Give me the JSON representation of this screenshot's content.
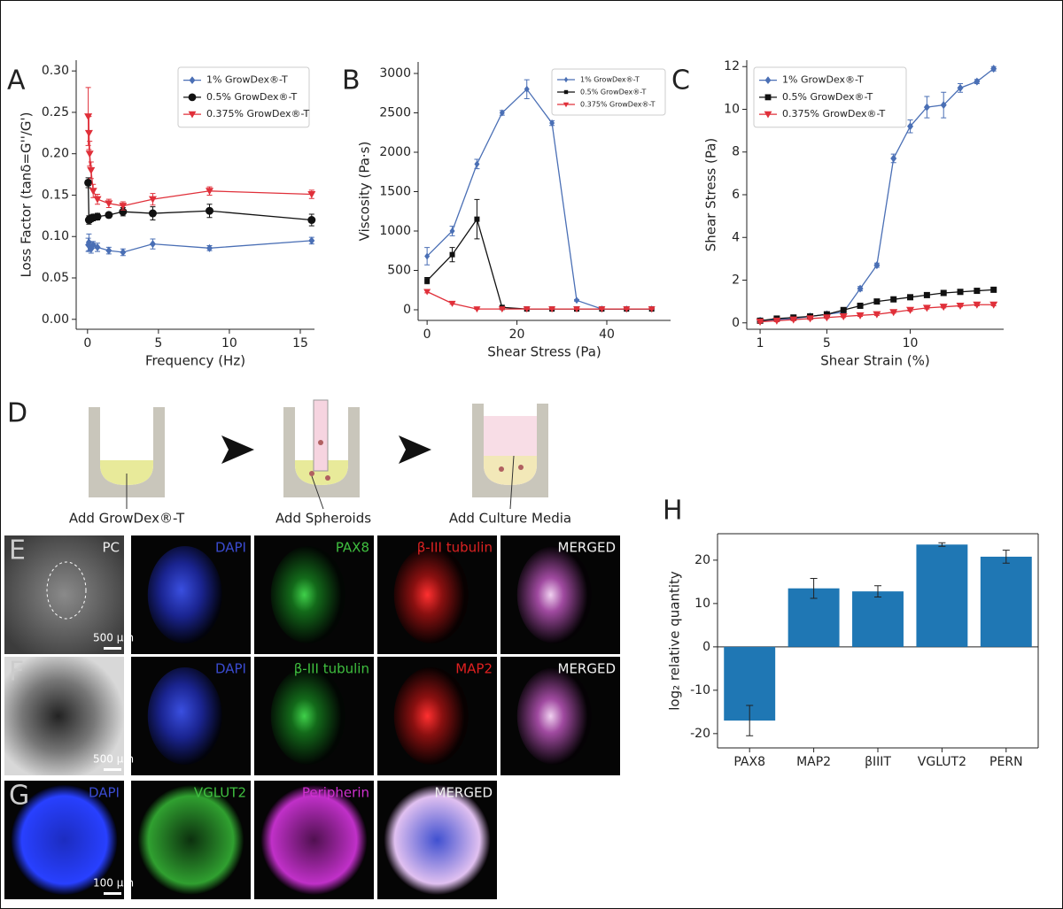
{
  "chart_data": [
    {
      "type": "line",
      "panel_label": "A",
      "xlabel": "Frequency (Hz)",
      "ylabel": "Loss Factor (tanδ=G''/G')",
      "xlim": [
        -0.8,
        16.0
      ],
      "ylim": [
        -0.012,
        0.313
      ],
      "xticks": [
        0,
        5,
        10,
        15
      ],
      "yticks": [
        {
          "value": 0,
          "label": "0.00"
        },
        0.05,
        {
          "value": 0.1,
          "label": "0.10"
        },
        0.15,
        {
          "value": 0.2,
          "label": "0.20"
        },
        0.25,
        {
          "value": 0.3,
          "label": "0.30"
        }
      ],
      "legend": "upper right",
      "x": [
        0.05,
        0.1,
        0.15,
        0.25,
        0.4,
        0.7,
        1.5,
        2.5,
        4.6,
        8.6,
        15.8
      ],
      "series": [
        {
          "name": "1% GrowDex®-T",
          "color": "#4a6fb5",
          "marker": "diamond",
          "values": [
            0.09,
            0.093,
            0.088,
            0.085,
            0.09,
            0.087,
            0.083,
            0.081,
            0.091,
            0.086,
            0.095
          ],
          "errors": [
            0.008,
            0.01,
            0.006,
            0.005,
            0.004,
            0.005,
            0.004,
            0.004,
            0.006,
            0.003,
            0.004
          ]
        },
        {
          "name": "0.5% GrowDex®-T",
          "color": "#111111",
          "marker": "circle",
          "values": [
            0.165,
            0.12,
            0.121,
            0.122,
            0.123,
            0.124,
            0.126,
            0.13,
            0.128,
            0.131,
            0.12
          ],
          "errors": [
            0.006,
            0.005,
            0.004,
            0.004,
            0.004,
            0.004,
            0.003,
            0.005,
            0.008,
            0.008,
            0.007
          ]
        },
        {
          "name": "0.375% GrowDex®-T",
          "color": "#e0303a",
          "marker": "triangle",
          "values": [
            0.245,
            0.225,
            0.2,
            0.18,
            0.155,
            0.145,
            0.14,
            0.137,
            0.145,
            0.155,
            0.151
          ],
          "errors": [
            0.035,
            0.02,
            0.015,
            0.01,
            0.008,
            0.006,
            0.005,
            0.005,
            0.007,
            0.005,
            0.005
          ]
        }
      ]
    },
    {
      "type": "line",
      "panel_label": "B",
      "xlabel": "Shear Stress (Pa)",
      "ylabel": "Viscosity (Pa·s)",
      "xlim": [
        -2,
        54.2
      ],
      "ylim": [
        -135,
        3146
      ],
      "xticks": [
        0,
        20,
        40
      ],
      "yticks": [
        0,
        500,
        1000,
        1500,
        2000,
        2500,
        3000
      ],
      "legend": "upper right",
      "x": [
        0,
        5.6,
        11.1,
        16.7,
        22.2,
        27.8,
        33.3,
        38.9,
        44.4,
        50
      ],
      "series": [
        {
          "name": "1% GrowDex®-T",
          "color": "#4a6fb5",
          "marker": "diamond",
          "values": [
            680,
            1000,
            1850,
            2500,
            2800,
            2370,
            120,
            10,
            10,
            10
          ],
          "errors": [
            110,
            60,
            60,
            30,
            120,
            30,
            10,
            5,
            5,
            5
          ]
        },
        {
          "name": "0.5% GrowDex®-T",
          "color": "#111111",
          "marker": "square",
          "values": [
            370,
            700,
            1150,
            30,
            10,
            10,
            10,
            10,
            10,
            10
          ],
          "errors": [
            40,
            90,
            250,
            10,
            5,
            5,
            5,
            5,
            5,
            5
          ]
        },
        {
          "name": "0.375% GrowDex®-T",
          "color": "#e0303a",
          "marker": "triangle",
          "values": [
            230,
            80,
            10,
            10,
            10,
            10,
            10,
            10,
            10,
            10
          ],
          "errors": [
            15,
            10,
            5,
            5,
            5,
            5,
            5,
            5,
            5,
            5
          ]
        }
      ]
    },
    {
      "type": "line",
      "panel_label": "C",
      "xlabel": "Shear Strain (%)",
      "ylabel": "Shear Stress (Pa)",
      "xlim": [
        0.2,
        15.6
      ],
      "ylim": [
        -0.3,
        12.3
      ],
      "xticks": [
        1,
        5,
        10
      ],
      "yticks": [
        0,
        2,
        4,
        6,
        8,
        10,
        12
      ],
      "legend": "upper left",
      "x": [
        1,
        2,
        3,
        4,
        5,
        6,
        7,
        8,
        9,
        10,
        11,
        12,
        13,
        14,
        15
      ],
      "series": [
        {
          "name": "1% GrowDex®-T",
          "color": "#4a6fb5",
          "marker": "diamond",
          "values": [
            0.1,
            0.15,
            0.2,
            0.3,
            0.4,
            0.5,
            1.6,
            2.7,
            7.7,
            9.2,
            10.1,
            10.2,
            11,
            11.3,
            11.9
          ],
          "errors": [
            0.05,
            0.05,
            0.05,
            0.05,
            0.05,
            0.05,
            0.1,
            0.1,
            0.2,
            0.3,
            0.5,
            0.6,
            0.2,
            0.1,
            0.1
          ]
        },
        {
          "name": "0.5% GrowDex®-T",
          "color": "#111111",
          "marker": "square",
          "values": [
            0.1,
            0.2,
            0.25,
            0.3,
            0.4,
            0.6,
            0.8,
            1.0,
            1.1,
            1.2,
            1.3,
            1.4,
            1.45,
            1.5,
            1.55
          ],
          "errors": [
            0.05,
            0.05,
            0.05,
            0.05,
            0.05,
            0.05,
            0.05,
            0.05,
            0.05,
            0.05,
            0.05,
            0.05,
            0.05,
            0.05,
            0.05
          ]
        },
        {
          "name": "0.375% GrowDex®-T",
          "color": "#e0303a",
          "marker": "triangle",
          "values": [
            0.05,
            0.1,
            0.15,
            0.2,
            0.25,
            0.3,
            0.35,
            0.4,
            0.5,
            0.6,
            0.7,
            0.75,
            0.8,
            0.85,
            0.85
          ],
          "errors": [
            0.05,
            0.05,
            0.05,
            0.05,
            0.05,
            0.05,
            0.05,
            0.05,
            0.05,
            0.05,
            0.05,
            0.05,
            0.05,
            0.05,
            0.05
          ]
        }
      ]
    },
    {
      "type": "bar",
      "panel_label": "H",
      "ylabel": "log₂ relative quantity",
      "color": "#1f77b4",
      "frame": true,
      "categories": [
        "PAX8",
        "MAP2",
        "βIIIT",
        "VGLUT2",
        "PERN"
      ],
      "values": [
        -17,
        13.5,
        12.8,
        23.6,
        20.8
      ],
      "errors": [
        3.5,
        2.3,
        1.3,
        0.4,
        1.5
      ],
      "ylim": [
        -23.3,
        26.1
      ],
      "yticks": [
        -20,
        -10,
        0,
        10,
        20
      ]
    }
  ],
  "diagram": {
    "label": "D",
    "steps": [
      "Add GrowDex®-T",
      "Add Spheroids",
      "Add Culture Media"
    ]
  },
  "micrographs": {
    "rows": [
      {
        "label": "E",
        "image_labels": [
          "PC",
          "DAPI",
          "PAX8",
          "β-III tubulin",
          "MERGED"
        ],
        "scale_bar": "500 µm"
      },
      {
        "label": "F",
        "image_labels": [
          "DAPI",
          "β-III tubulin",
          "MAP2",
          "MERGED"
        ],
        "scale_bar": "500 µm"
      },
      {
        "label": "G",
        "image_labels": [
          "DAPI",
          "VGLUT2",
          "Peripherin",
          "MERGED"
        ],
        "scale_bar": "100 µm"
      }
    ]
  }
}
